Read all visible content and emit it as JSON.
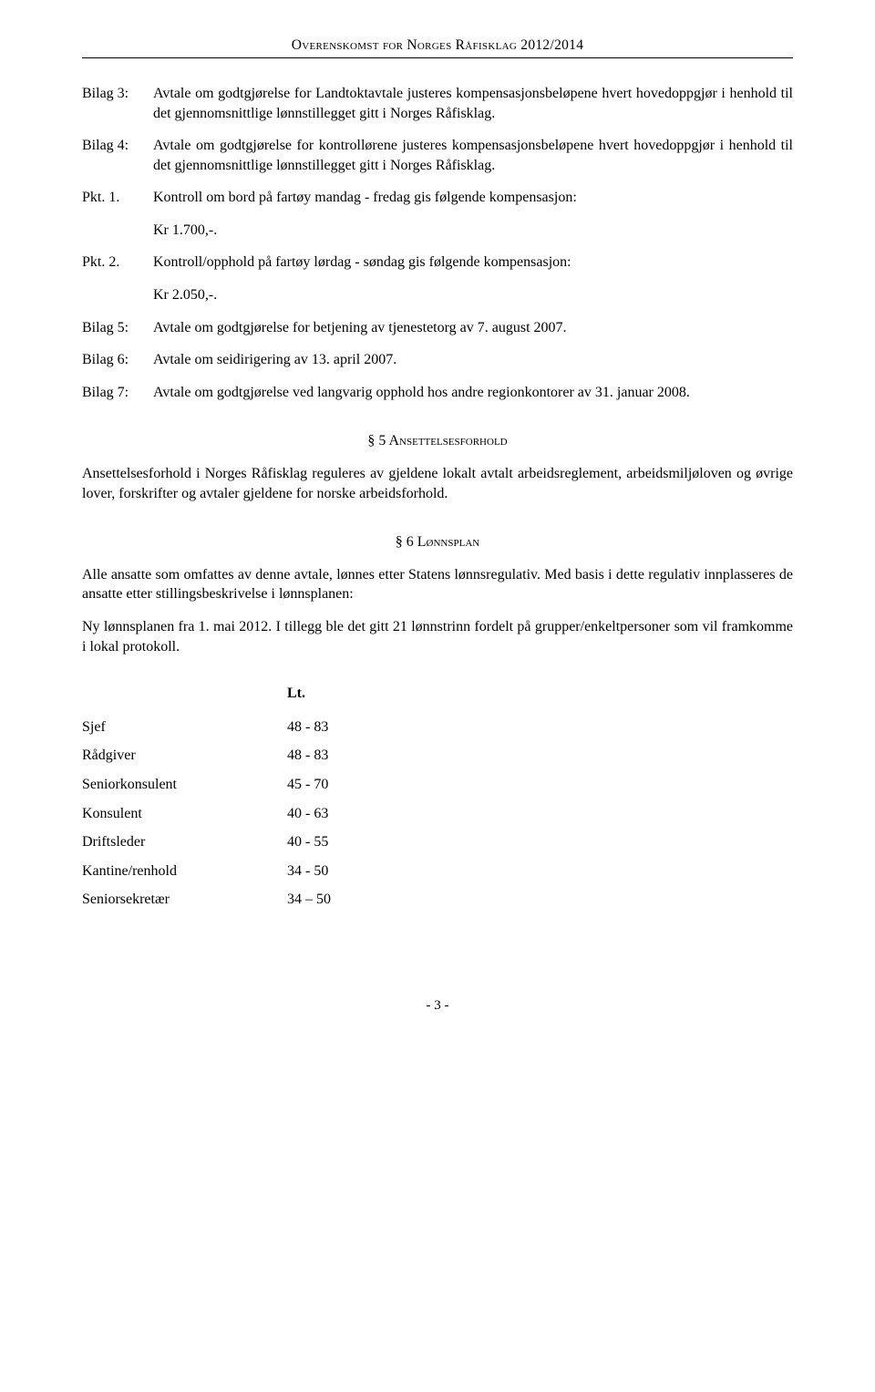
{
  "header": "Overenskomst for Norges Råfisklag 2012/2014",
  "entries": [
    {
      "label": "Bilag 3:",
      "text": "Avtale om godtgjørelse for Landtoktavtale justeres kompensasjonsbeløpene hvert hovedoppgjør i henhold til det gjennomsnittlige lønnstillegget gitt i Norges Råfisklag."
    },
    {
      "label": "Bilag 4:",
      "text": "Avtale om godtgjørelse for kontrollørene justeres kompensasjonsbeløpene hvert hovedoppgjør i henhold til det gjennomsnittlige lønnstillegget gitt i Norges Råfisklag."
    },
    {
      "label": "Pkt. 1.",
      "text": "Kontroll om bord på fartøy mandag - fredag gis følgende kompensasjon:",
      "amount": "Kr 1.700,-."
    },
    {
      "label": "Pkt. 2.",
      "text": "Kontroll/opphold på fartøy lørdag - søndag gis følgende kompensasjon:",
      "amount": "Kr 2.050,-."
    },
    {
      "label": "Bilag 5:",
      "text": "Avtale om godtgjørelse for betjening av tjenestetorg av 7. august 2007."
    },
    {
      "label": "Bilag 6:",
      "text": "Avtale om seidirigering av 13. april 2007."
    },
    {
      "label": "Bilag 7:",
      "text": "Avtale om godtgjørelse ved langvarig opphold hos andre regionkontorer av 31. januar 2008."
    }
  ],
  "section5": {
    "heading": "§ 5 Ansettelsesforhold",
    "body": "Ansettelsesforhold i Norges Råfisklag reguleres av gjeldene lokalt avtalt arbeidsreglement, arbeidsmiljøloven og øvrige lover, forskrifter og avtaler gjeldene for norske arbeidsforhold."
  },
  "section6": {
    "heading": "§ 6 Lønnsplan",
    "body1": "Alle ansatte som omfattes av denne avtale, lønnes etter Statens lønnsregulativ. Med basis i dette regulativ innplasseres de ansatte etter stillingsbeskrivelse i lønnsplanen:",
    "body2": "Ny lønnsplanen fra 1. mai 2012. I tillegg ble det gitt 21 lønnstrinn fordelt på grupper/enkeltpersoner som vil framkomme i lokal protokoll."
  },
  "lt": {
    "heading": "Lt.",
    "rows": [
      {
        "role": "Sjef",
        "range": "48 - 83"
      },
      {
        "role": "Rådgiver",
        "range": "48 - 83"
      },
      {
        "role": "Seniorkonsulent",
        "range": "45 - 70"
      },
      {
        "role": "Konsulent",
        "range": "40 - 63"
      },
      {
        "role": "Driftsleder",
        "range": "40 - 55"
      },
      {
        "role": "Kantine/renhold",
        "range": "34 - 50"
      },
      {
        "role": "Seniorsekretær",
        "range": "34 – 50"
      }
    ]
  },
  "pagefoot": "- 3 -"
}
